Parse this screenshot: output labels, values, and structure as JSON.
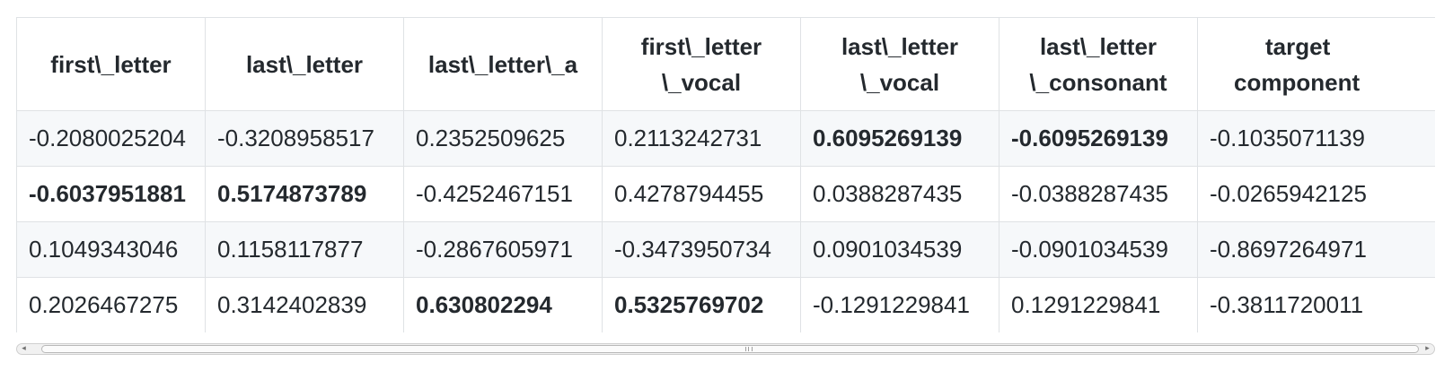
{
  "table": {
    "headers": [
      [
        "first\\_letter"
      ],
      [
        "last\\_letter"
      ],
      [
        "last\\_letter\\_a"
      ],
      [
        "first\\_letter",
        "\\_vocal"
      ],
      [
        "last\\_letter",
        "\\_vocal"
      ],
      [
        "last\\_letter",
        "\\_consonant"
      ],
      [
        "target",
        "component"
      ]
    ],
    "rows": [
      [
        "-0.2080025204",
        "-0.3208958517",
        "0.2352509625",
        "0.2113242731",
        "0.6095269139",
        "-0.6095269139",
        "-0.1035071139"
      ],
      [
        "-0.6037951881",
        "0.5174873789",
        "-0.4252467151",
        "0.4278794455",
        "0.0388287435",
        "-0.0388287435",
        "-0.0265942125"
      ],
      [
        "0.1049343046",
        "0.1158117877",
        "-0.2867605971",
        "-0.3473950734",
        "0.0901034539",
        "-0.0901034539",
        "-0.8697264971"
      ],
      [
        "0.2026467275",
        "0.3142402839",
        "0.630802294",
        "0.5325769702",
        "-0.1291229841",
        "0.1291229841",
        "-0.3811720011"
      ]
    ],
    "bold_cells": [
      [
        0,
        4
      ],
      [
        0,
        5
      ],
      [
        1,
        0
      ],
      [
        1,
        1
      ],
      [
        3,
        2
      ],
      [
        3,
        3
      ]
    ]
  },
  "scrollbar": {
    "orientation": "horizontal",
    "left_arrow_icon": "scroll-left-arrow-icon",
    "right_arrow_icon": "scroll-right-arrow-icon"
  }
}
